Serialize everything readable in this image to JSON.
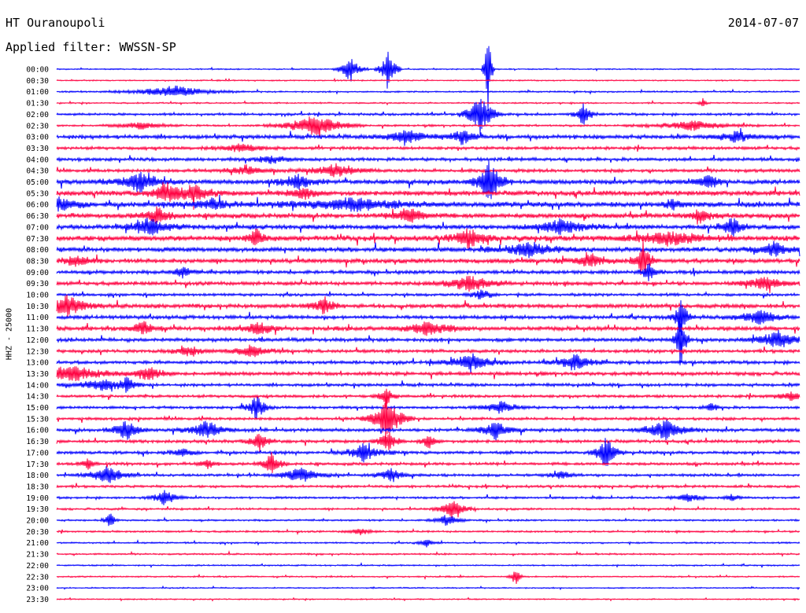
{
  "header": {
    "station": "HT Ouranoupoli",
    "filter": "Applied filter: WWSSN-SP",
    "date": "2014-07-07"
  },
  "axis": {
    "ylabel": "HHZ - 25000"
  },
  "chart_data": {
    "type": "line",
    "title": "HT Ouranoupoli",
    "subtitle": "Applied filter: WWSSN-SP",
    "ylabel": "HHZ - 25000",
    "row_labels": [
      "00:00",
      "00:30",
      "01:00",
      "01:30",
      "02:00",
      "02:30",
      "03:00",
      "03:30",
      "04:00",
      "04:30",
      "05:00",
      "05:30",
      "06:00",
      "06:30",
      "07:00",
      "07:30",
      "08:00",
      "08:30",
      "09:00",
      "09:30",
      "10:00",
      "10:30",
      "11:00",
      "11:30",
      "12:00",
      "12:30",
      "13:00",
      "13:30",
      "14:00",
      "14:30",
      "15:00",
      "15:30",
      "16:00",
      "16:30",
      "17:00",
      "17:30",
      "18:00",
      "18:30",
      "19:00",
      "19:30",
      "20:00",
      "20:30",
      "21:00",
      "21:30",
      "22:00",
      "22:30",
      "23:00",
      "23:30"
    ],
    "colors": [
      "#0000ff",
      "#ff0040"
    ],
    "noise": [
      0.6,
      0.6,
      0.8,
      0.7,
      1.2,
      1.0,
      2.0,
      1.5,
      1.6,
      1.6,
      2.2,
      2.4,
      2.6,
      2.4,
      2.3,
      2.6,
      2.3,
      2.2,
      1.8,
      1.8,
      1.4,
      2.0,
      1.8,
      2.0,
      1.8,
      1.6,
      1.6,
      1.8,
      1.5,
      1.4,
      1.3,
      1.4,
      1.6,
      1.5,
      1.5,
      1.4,
      1.3,
      1.2,
      1.1,
      1.0,
      0.9,
      0.9,
      0.8,
      0.8,
      0.7,
      0.7,
      0.6,
      0.6
    ],
    "events": [
      {
        "row": 0,
        "x": 445,
        "a": 18,
        "w": 8
      },
      {
        "row": 0,
        "x": 493,
        "a": 30,
        "w": 6
      },
      {
        "row": 0,
        "x": 620,
        "a": 60,
        "w": 3
      },
      {
        "row": 2,
        "x": 220,
        "a": 8,
        "w": 30
      },
      {
        "row": 3,
        "x": 893,
        "a": 6,
        "w": 3
      },
      {
        "row": 4,
        "x": 610,
        "a": 28,
        "w": 10
      },
      {
        "row": 4,
        "x": 742,
        "a": 16,
        "w": 6
      },
      {
        "row": 5,
        "x": 180,
        "a": 5,
        "w": 18
      },
      {
        "row": 5,
        "x": 400,
        "a": 16,
        "w": 22
      },
      {
        "row": 5,
        "x": 880,
        "a": 6,
        "w": 30
      },
      {
        "row": 6,
        "x": 515,
        "a": 10,
        "w": 16
      },
      {
        "row": 6,
        "x": 588,
        "a": 10,
        "w": 10
      },
      {
        "row": 6,
        "x": 935,
        "a": 7,
        "w": 16
      },
      {
        "row": 7,
        "x": 308,
        "a": 6,
        "w": 18
      },
      {
        "row": 8,
        "x": 345,
        "a": 5,
        "w": 14
      },
      {
        "row": 9,
        "x": 313,
        "a": 6,
        "w": 16
      },
      {
        "row": 9,
        "x": 425,
        "a": 8,
        "w": 22
      },
      {
        "row": 10,
        "x": 178,
        "a": 12,
        "w": 18
      },
      {
        "row": 10,
        "x": 378,
        "a": 10,
        "w": 14
      },
      {
        "row": 10,
        "x": 622,
        "a": 30,
        "w": 10
      },
      {
        "row": 10,
        "x": 900,
        "a": 12,
        "w": 8
      },
      {
        "row": 11,
        "x": 210,
        "a": 14,
        "w": 10
      },
      {
        "row": 11,
        "x": 246,
        "a": 12,
        "w": 14
      },
      {
        "row": 11,
        "x": 385,
        "a": 8,
        "w": 12
      },
      {
        "row": 12,
        "x": 78,
        "a": 8,
        "w": 14
      },
      {
        "row": 12,
        "x": 270,
        "a": 7,
        "w": 18
      },
      {
        "row": 12,
        "x": 450,
        "a": 8,
        "w": 40
      },
      {
        "row": 12,
        "x": 855,
        "a": 6,
        "w": 8
      },
      {
        "row": 13,
        "x": 200,
        "a": 10,
        "w": 12
      },
      {
        "row": 13,
        "x": 520,
        "a": 12,
        "w": 12
      },
      {
        "row": 13,
        "x": 890,
        "a": 8,
        "w": 10
      },
      {
        "row": 14,
        "x": 190,
        "a": 12,
        "w": 16
      },
      {
        "row": 14,
        "x": 712,
        "a": 10,
        "w": 20
      },
      {
        "row": 14,
        "x": 930,
        "a": 14,
        "w": 8
      },
      {
        "row": 15,
        "x": 325,
        "a": 18,
        "w": 6
      },
      {
        "row": 15,
        "x": 596,
        "a": 12,
        "w": 14
      },
      {
        "row": 15,
        "x": 850,
        "a": 8,
        "w": 30
      },
      {
        "row": 16,
        "x": 672,
        "a": 10,
        "w": 22
      },
      {
        "row": 16,
        "x": 985,
        "a": 9,
        "w": 14
      },
      {
        "row": 17,
        "x": 97,
        "a": 6,
        "w": 14
      },
      {
        "row": 17,
        "x": 750,
        "a": 8,
        "w": 16
      },
      {
        "row": 17,
        "x": 817,
        "a": 26,
        "w": 6
      },
      {
        "row": 18,
        "x": 232,
        "a": 7,
        "w": 8
      },
      {
        "row": 18,
        "x": 824,
        "a": 12,
        "w": 6
      },
      {
        "row": 19,
        "x": 597,
        "a": 10,
        "w": 20
      },
      {
        "row": 19,
        "x": 970,
        "a": 10,
        "w": 16
      },
      {
        "row": 20,
        "x": 612,
        "a": 8,
        "w": 8
      },
      {
        "row": 21,
        "x": 85,
        "a": 14,
        "w": 16
      },
      {
        "row": 21,
        "x": 410,
        "a": 10,
        "w": 10
      },
      {
        "row": 22,
        "x": 866,
        "a": 24,
        "w": 6
      },
      {
        "row": 22,
        "x": 965,
        "a": 10,
        "w": 16
      },
      {
        "row": 23,
        "x": 183,
        "a": 9,
        "w": 10
      },
      {
        "row": 23,
        "x": 330,
        "a": 10,
        "w": 12
      },
      {
        "row": 23,
        "x": 545,
        "a": 10,
        "w": 18
      },
      {
        "row": 24,
        "x": 988,
        "a": 11,
        "w": 18
      },
      {
        "row": 24,
        "x": 865,
        "a": 40,
        "w": 4
      },
      {
        "row": 25,
        "x": 240,
        "a": 6,
        "w": 14
      },
      {
        "row": 25,
        "x": 320,
        "a": 8,
        "w": 14
      },
      {
        "row": 26,
        "x": 598,
        "a": 11,
        "w": 18
      },
      {
        "row": 26,
        "x": 730,
        "a": 11,
        "w": 14
      },
      {
        "row": 27,
        "x": 90,
        "a": 12,
        "w": 24
      },
      {
        "row": 27,
        "x": 190,
        "a": 10,
        "w": 12
      },
      {
        "row": 28,
        "x": 130,
        "a": 8,
        "w": 18
      },
      {
        "row": 28,
        "x": 162,
        "a": 10,
        "w": 6
      },
      {
        "row": 29,
        "x": 490,
        "a": 14,
        "w": 6
      },
      {
        "row": 29,
        "x": 1005,
        "a": 5,
        "w": 14
      },
      {
        "row": 30,
        "x": 326,
        "a": 16,
        "w": 8
      },
      {
        "row": 30,
        "x": 636,
        "a": 8,
        "w": 14
      },
      {
        "row": 30,
        "x": 905,
        "a": 6,
        "w": 6
      },
      {
        "row": 31,
        "x": 492,
        "a": 30,
        "w": 12
      },
      {
        "row": 32,
        "x": 160,
        "a": 14,
        "w": 10
      },
      {
        "row": 32,
        "x": 262,
        "a": 12,
        "w": 14
      },
      {
        "row": 32,
        "x": 630,
        "a": 12,
        "w": 12
      },
      {
        "row": 32,
        "x": 845,
        "a": 14,
        "w": 16
      },
      {
        "row": 33,
        "x": 330,
        "a": 12,
        "w": 8
      },
      {
        "row": 33,
        "x": 493,
        "a": 14,
        "w": 8
      },
      {
        "row": 33,
        "x": 545,
        "a": 10,
        "w": 6
      },
      {
        "row": 34,
        "x": 462,
        "a": 12,
        "w": 14
      },
      {
        "row": 34,
        "x": 770,
        "a": 22,
        "w": 8
      },
      {
        "row": 34,
        "x": 232,
        "a": 6,
        "w": 8
      },
      {
        "row": 35,
        "x": 345,
        "a": 14,
        "w": 8
      },
      {
        "row": 35,
        "x": 264,
        "a": 8,
        "w": 6
      },
      {
        "row": 35,
        "x": 113,
        "a": 8,
        "w": 6
      },
      {
        "row": 36,
        "x": 137,
        "a": 12,
        "w": 14
      },
      {
        "row": 36,
        "x": 382,
        "a": 10,
        "w": 16
      },
      {
        "row": 36,
        "x": 497,
        "a": 10,
        "w": 10
      },
      {
        "row": 36,
        "x": 713,
        "a": 5,
        "w": 10
      },
      {
        "row": 38,
        "x": 210,
        "a": 10,
        "w": 10
      },
      {
        "row": 38,
        "x": 875,
        "a": 6,
        "w": 10
      },
      {
        "row": 38,
        "x": 930,
        "a": 5,
        "w": 6
      },
      {
        "row": 39,
        "x": 575,
        "a": 14,
        "w": 10
      },
      {
        "row": 40,
        "x": 568,
        "a": 8,
        "w": 10
      },
      {
        "row": 40,
        "x": 140,
        "a": 12,
        "w": 4
      },
      {
        "row": 41,
        "x": 458,
        "a": 4,
        "w": 10
      },
      {
        "row": 42,
        "x": 542,
        "a": 6,
        "w": 6
      },
      {
        "row": 45,
        "x": 655,
        "a": 12,
        "w": 4
      }
    ]
  }
}
